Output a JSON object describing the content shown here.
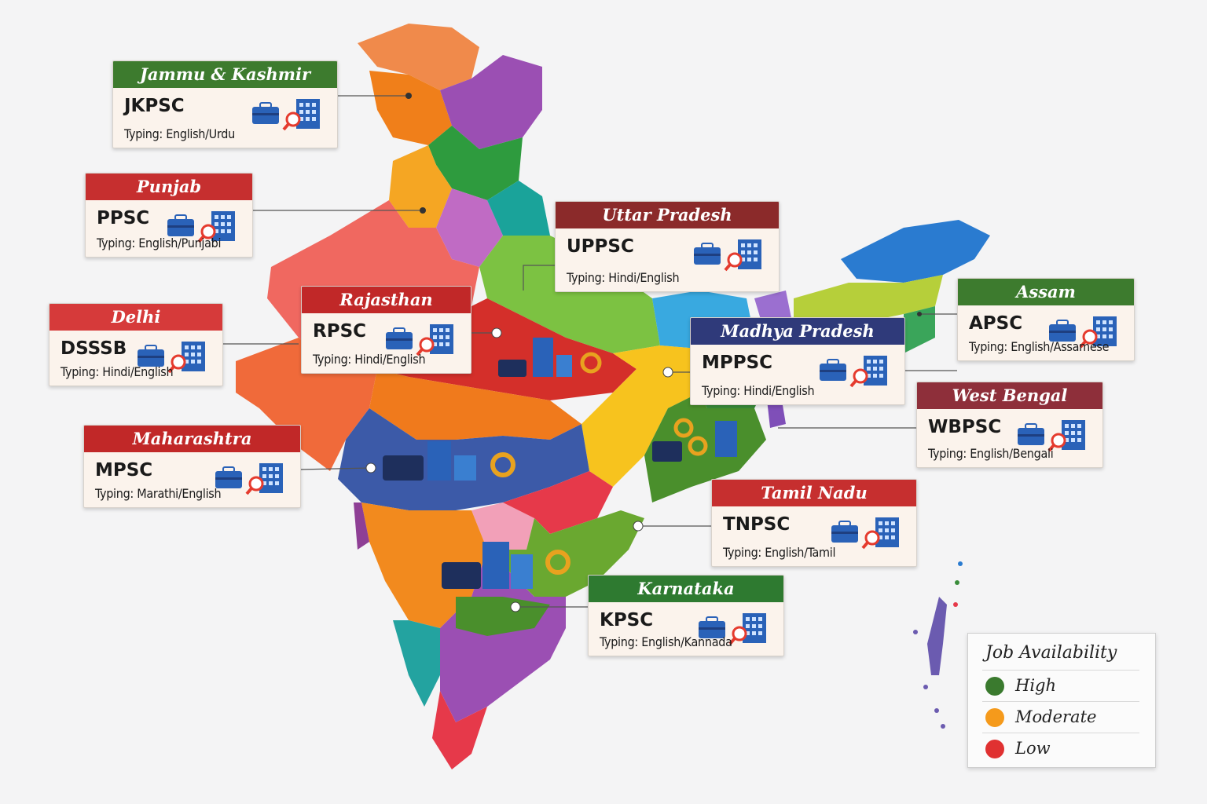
{
  "cards": [
    {
      "id": "jk",
      "state": "Jammu & Kashmir",
      "code": "JKPSC",
      "typing": "Typing: English/Urdu",
      "color": "#3d7b2e"
    },
    {
      "id": "pb",
      "state": "Punjab",
      "code": "PPSC",
      "typing": "Typing: English/Punjabi",
      "color": "#c62f2f"
    },
    {
      "id": "up",
      "state": "Uttar Pradesh",
      "code": "UPPSC",
      "typing": "Typing: Hindi/English",
      "color": "#8b2a2a"
    },
    {
      "id": "rj",
      "state": "Rajasthan",
      "code": "RPSC",
      "typing": "Typing: Hindi/English",
      "color": "#c12828"
    },
    {
      "id": "dl",
      "state": "Delhi",
      "code": "DSSSB",
      "typing": "Typing: Hindi/English",
      "color": "#d63a3a"
    },
    {
      "id": "as",
      "state": "Assam",
      "code": "APSC",
      "typing": "Typing: English/Assamese",
      "color": "#3d7b2e"
    },
    {
      "id": "mp",
      "state": "Madhya Pradesh",
      "code": "MPPSC",
      "typing": "Typing: Hindi/English",
      "color": "#2f3a7a"
    },
    {
      "id": "wb",
      "state": "West Bengal",
      "code": "WBPSC",
      "typing": "Typing: English/Bengali",
      "color": "#8e2f3a"
    },
    {
      "id": "mh",
      "state": "Maharashtra",
      "code": "MPSC",
      "typing": "Typing: Marathi/English",
      "color": "#c12828"
    },
    {
      "id": "tn",
      "state": "Tamil Nadu",
      "code": "TNPSC",
      "typing": "Typing: English/Tamil",
      "color": "#c62f2f"
    },
    {
      "id": "ka",
      "state": "Karnataka",
      "code": "KPSC",
      "typing": "Typing: English/Kannada",
      "color": "#2e7a30"
    }
  ],
  "legend": {
    "title": "Job Availability",
    "items": [
      {
        "label": "High",
        "color": "#3a7a2e"
      },
      {
        "label": "Moderate",
        "color": "#f59a1b"
      },
      {
        "label": "Low",
        "color": "#e03131"
      }
    ]
  },
  "icons": {
    "briefcase": "briefcase-icon",
    "building": "office-building-icon",
    "search": "magnifier-icon",
    "bank": "bank-icon"
  }
}
